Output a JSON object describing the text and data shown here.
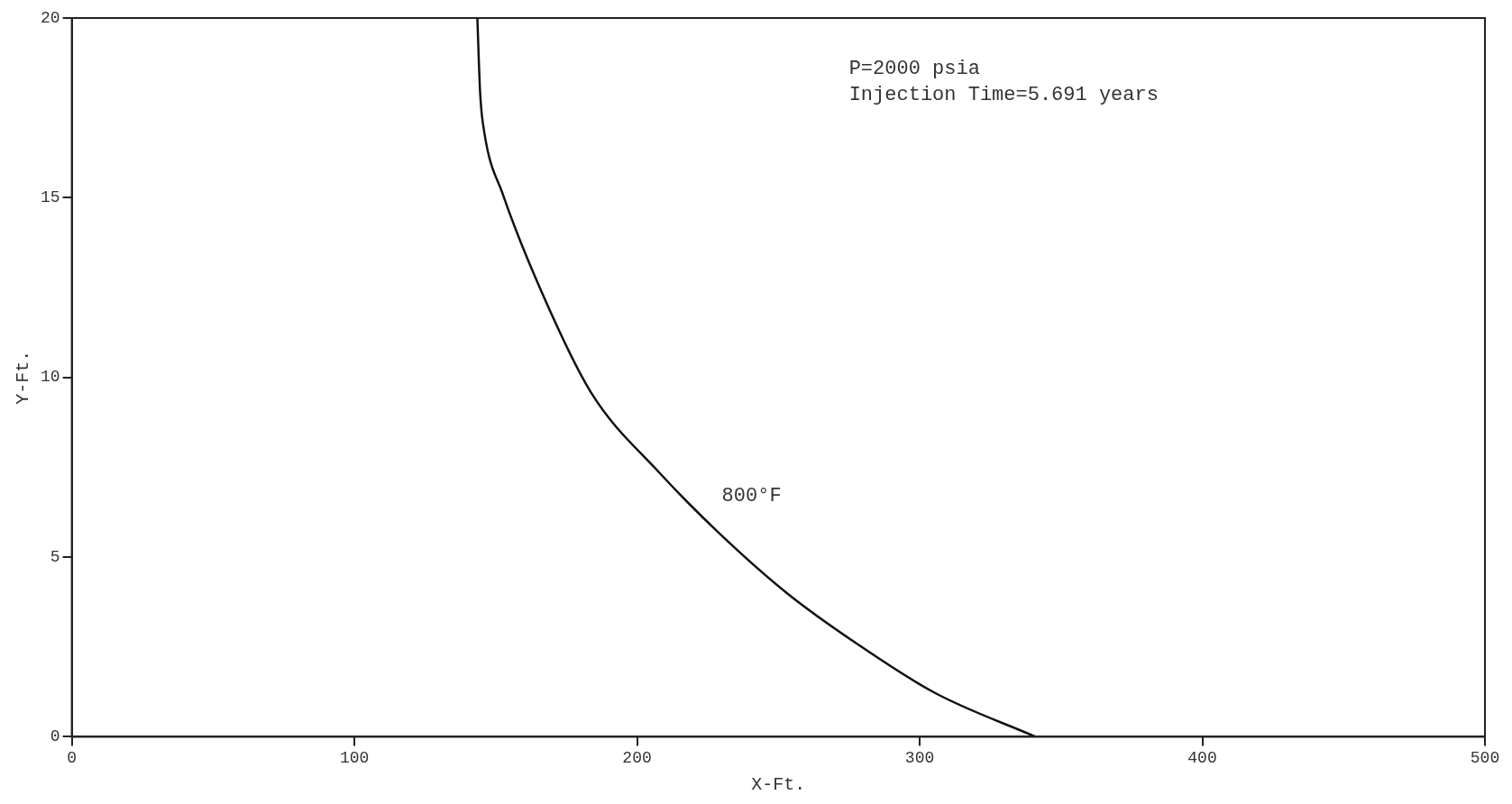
{
  "chart_data": {
    "type": "line",
    "xlabel": "X-Ft.",
    "ylabel": "Y-Ft.",
    "x": [
      143.5,
      144.5,
      146,
      152.5,
      166.4,
      183.8,
      208,
      229,
      253,
      277.6,
      305.4,
      341
    ],
    "values": [
      20,
      17.9,
      16.8,
      15.1,
      12.35,
      9.57,
      7.34,
      5.67,
      4.0,
      2.6,
      1.22,
      0
    ],
    "color": "#111111",
    "marker": "none",
    "line_style": "solid",
    "grid": false,
    "legend": false,
    "xlim": [
      0,
      500
    ],
    "xticks": [
      0,
      100,
      200,
      300,
      400,
      500
    ],
    "ylim": [
      0,
      20
    ],
    "yticks": [
      0,
      5,
      10,
      15,
      20
    ],
    "annotations": [
      "P=2000 psia",
      "Injection Time=5.691 years",
      "800°F"
    ]
  }
}
